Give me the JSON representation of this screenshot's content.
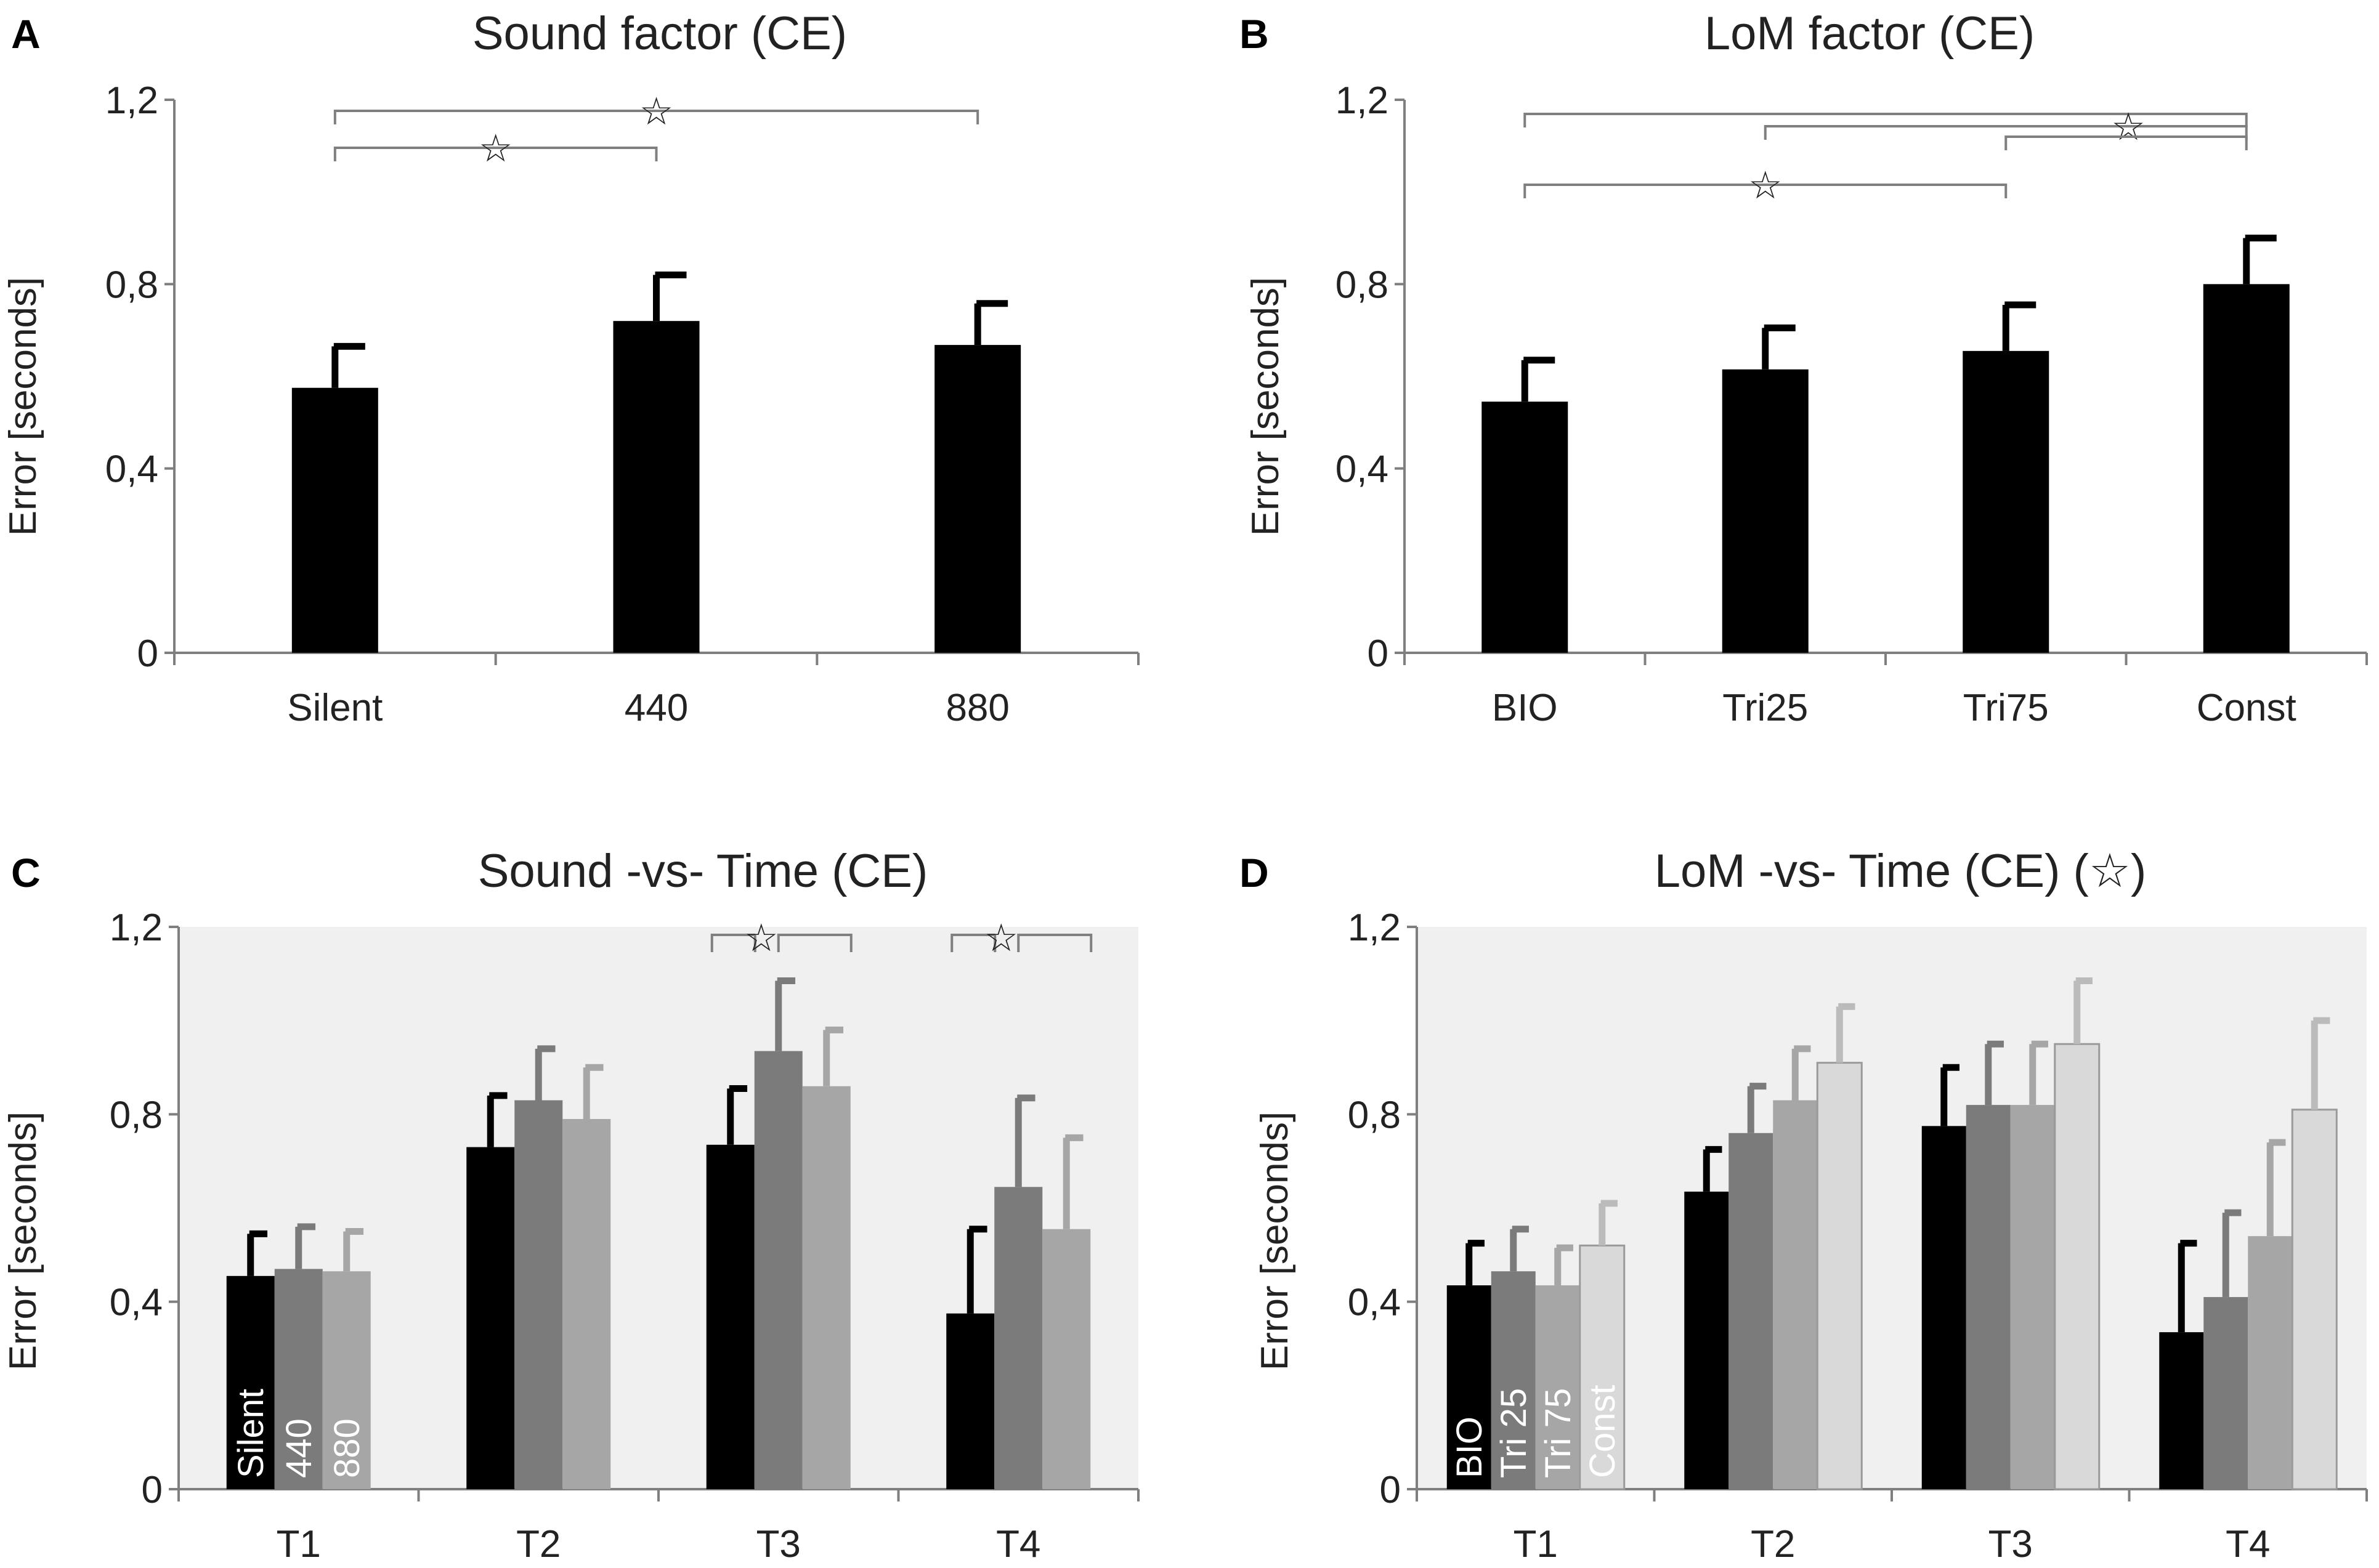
{
  "chart_data": [
    {
      "panel": "A",
      "type": "bar",
      "title": "Sound factor (CE)",
      "ylabel": "Error  [seconds]",
      "xlabel": "",
      "ylim": [
        0,
        1.2
      ],
      "yticks": [
        "0",
        "0,4",
        "0,8",
        "1,2"
      ],
      "categories": [
        "Silent",
        "440",
        "880"
      ],
      "values": [
        0.575,
        0.72,
        0.668
      ],
      "errors": [
        0.09,
        0.1,
        0.09
      ],
      "colors": [
        "#000000",
        "#000000",
        "#000000"
      ],
      "significance": [
        {
          "from": 0,
          "to": 1,
          "marker": "☆"
        },
        {
          "from": 0,
          "to": 2,
          "marker": "☆"
        }
      ]
    },
    {
      "panel": "B",
      "type": "bar",
      "title": "LoM factor (CE)",
      "ylabel": "Error  [seconds]",
      "xlabel": "",
      "ylim": [
        0,
        1.2
      ],
      "yticks": [
        "0",
        "0,4",
        "0,8",
        "1,2"
      ],
      "categories": [
        "BIO",
        "Tri25",
        "Tri75",
        "Const"
      ],
      "values": [
        0.545,
        0.615,
        0.655,
        0.8
      ],
      "errors": [
        0.09,
        0.09,
        0.1,
        0.1
      ],
      "colors": [
        "#000000",
        "#000000",
        "#000000",
        "#000000"
      ],
      "significance": [
        {
          "from": 0,
          "to": 2,
          "marker": "☆"
        },
        {
          "from": 0,
          "to": 3,
          "marker": "☆"
        },
        {
          "from": 1,
          "to": 3,
          "marker": "☆"
        },
        {
          "from": 2,
          "to": 3,
          "marker": "☆"
        }
      ]
    },
    {
      "panel": "C",
      "type": "bar",
      "title": "Sound -vs- Time (CE)",
      "ylabel": "Error  [seconds]",
      "xlabel": "",
      "ylim": [
        0,
        1.2
      ],
      "yticks": [
        "0",
        "0,4",
        "0,8",
        "1,2"
      ],
      "categories": [
        "T1",
        "T2",
        "T3",
        "T4"
      ],
      "series": [
        {
          "name": "Silent",
          "color": "#000000",
          "values": [
            0.455,
            0.73,
            0.735,
            0.375
          ],
          "errors": [
            0.09,
            0.11,
            0.12,
            0.18
          ]
        },
        {
          "name": "440",
          "color": "#7b7b7b",
          "values": [
            0.47,
            0.83,
            0.935,
            0.645
          ],
          "errors": [
            0.09,
            0.11,
            0.15,
            0.19
          ]
        },
        {
          "name": "880",
          "color": "#a6a6a6",
          "values": [
            0.465,
            0.79,
            0.86,
            0.555
          ],
          "errors": [
            0.085,
            0.11,
            0.12,
            0.195
          ]
        }
      ],
      "significance_groups": [
        {
          "category": "T3",
          "marker": "☆"
        },
        {
          "category": "T4",
          "marker": "☆"
        }
      ]
    },
    {
      "panel": "D",
      "type": "bar",
      "title": "LoM -vs- Time  (CE) (☆)",
      "ylabel": "Error  [seconds]",
      "xlabel": "",
      "ylim": [
        0,
        1.2
      ],
      "yticks": [
        "0",
        "0,4",
        "0,8",
        "1,2"
      ],
      "categories": [
        "T1",
        "T2",
        "T3",
        "T4"
      ],
      "series": [
        {
          "name": "BIO",
          "color": "#000000",
          "values": [
            0.435,
            0.635,
            0.775,
            0.335
          ],
          "errors": [
            0.09,
            0.09,
            0.125,
            0.19
          ]
        },
        {
          "name": "Tri 25",
          "color": "#7b7b7b",
          "values": [
            0.465,
            0.76,
            0.82,
            0.41
          ],
          "errors": [
            0.09,
            0.1,
            0.13,
            0.18
          ]
        },
        {
          "name": "Tri 75",
          "color": "#a6a6a6",
          "values": [
            0.435,
            0.83,
            0.82,
            0.54
          ],
          "errors": [
            0.08,
            0.11,
            0.13,
            0.2
          ]
        },
        {
          "name": "Const",
          "color": "#d9d9d9",
          "values": [
            0.52,
            0.91,
            0.95,
            0.81
          ],
          "errors": [
            0.09,
            0.12,
            0.135,
            0.19
          ]
        }
      ]
    }
  ]
}
